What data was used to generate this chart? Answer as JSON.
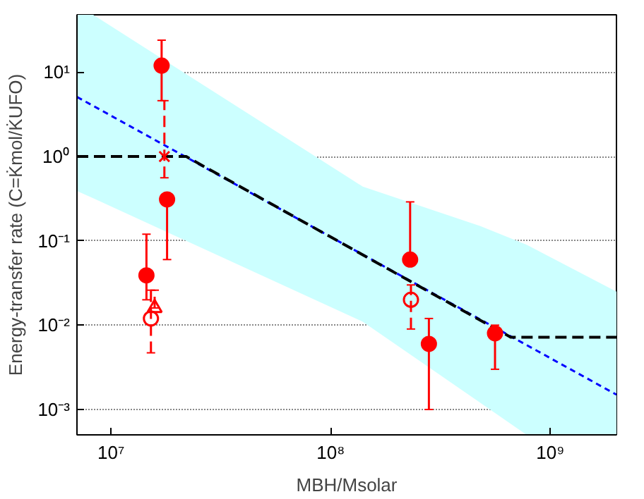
{
  "chart_data": {
    "type": "scatter",
    "xlabel": "MBH/Msolar",
    "ylabel": "Energy-transfer rate (C=K̇mol/K̇UFO)",
    "log": "xy",
    "grid": "y",
    "xlim": [
      7000000,
      2000000000
    ],
    "ylim": [
      0.0005,
      48
    ],
    "xticks": [
      {
        "value": 10000000,
        "label": "10⁷"
      },
      {
        "value": 100000000,
        "label": "10⁸"
      },
      {
        "value": 1000000000,
        "label": "10⁹"
      }
    ],
    "yticks": [
      {
        "value": 0.001,
        "label": "10⁻³"
      },
      {
        "value": 0.01,
        "label": "10⁻²"
      },
      {
        "value": 0.1,
        "label": "10⁻¹"
      },
      {
        "value": 1,
        "label": "10⁰"
      },
      {
        "value": 10,
        "label": "10¹"
      }
    ],
    "series": [
      {
        "type": "area",
        "color": "#ccffff",
        "x": [
          7000000,
          8300000,
          140000000,
          480000000,
          780000000,
          2000000000
        ],
        "lower": [
          0.39,
          0.32,
          0.011,
          0.0012,
          0.0005,
          0.0005
        ],
        "upper": [
          48,
          48,
          0.44,
          0.15,
          0.09,
          0.025
        ],
        "values": [
          null,
          null,
          null,
          null,
          null,
          null
        ]
      },
      {
        "type": "line",
        "color": "#0000ff",
        "line_style": "dotted",
        "x": [
          7000000,
          2000000000
        ],
        "values": [
          5.1,
          0.0015
        ]
      },
      {
        "type": "line",
        "color": "#000000",
        "line_style": "dashed",
        "x": [
          7000000,
          22000000,
          660000000,
          2000000000
        ],
        "values": [
          1.0,
          1.0,
          0.0072,
          0.0072
        ]
      },
      {
        "color": "#ff0000",
        "marker": "circle",
        "x": [
          17000000,
          18000000,
          14500000,
          230000000,
          280000000,
          560000000
        ],
        "values": [
          12,
          0.31,
          0.039,
          0.06,
          0.006,
          0.008
        ],
        "errors": [
          [
            4.6,
            24
          ],
          [
            0.06,
            0.31
          ],
          [
            0.02,
            0.12
          ],
          [
            0.06,
            0.29
          ],
          [
            0.001,
            0.012
          ],
          [
            0.003,
            0.01
          ]
        ]
      },
      {
        "color": "#ff0000",
        "marker": "cross",
        "line_style": "dashed",
        "x": [
          17500000
        ],
        "values": [
          1.0
        ],
        "errors": [
          [
            0.56,
            4.6
          ]
        ]
      },
      {
        "color": "#ff0000",
        "marker": "triangle",
        "line_style": "dashed",
        "x": [
          15800000
        ],
        "values": [
          0.016
        ],
        "errors": [
          [
            0.016,
            0.026
          ]
        ]
      },
      {
        "color": "#ff0000",
        "marker": "circle",
        "line_style": "dashed",
        "x": [
          15200000,
          232000000
        ],
        "values": [
          0.012,
          0.02
        ],
        "errors": [
          [
            0.0047,
            0.026
          ],
          [
            0.009,
            0.03
          ]
        ]
      }
    ]
  }
}
